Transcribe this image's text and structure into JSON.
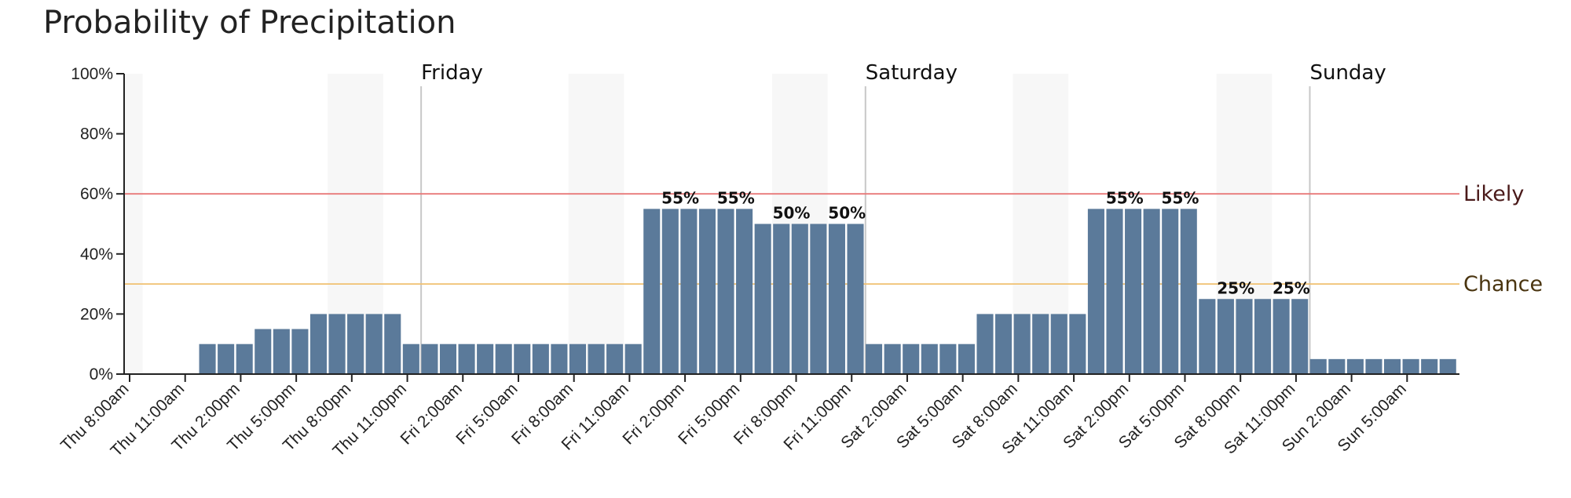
{
  "chart_data": {
    "type": "bar",
    "title": "Probability of Precipitation",
    "xlabel": "",
    "ylabel": "",
    "ylim": [
      0,
      100
    ],
    "yticks": [
      "0%",
      "20%",
      "40%",
      "60%",
      "80%",
      "100%"
    ],
    "ytick_values": [
      0,
      20,
      40,
      60,
      80,
      100
    ],
    "start_time": "Thu 8:00am",
    "interval_hours": 1,
    "xtick_labels": [
      "Thu 8:00am",
      "Thu 11:00am",
      "Thu 2:00pm",
      "Thu 5:00pm",
      "Thu 8:00pm",
      "Thu 11:00pm",
      "Fri 2:00am",
      "Fri 5:00am",
      "Fri 8:00am",
      "Fri 11:00am",
      "Fri 2:00pm",
      "Fri 5:00pm",
      "Fri 8:00pm",
      "Fri 11:00pm",
      "Sat 2:00am",
      "Sat 5:00am",
      "Sat 8:00am",
      "Sat 11:00am",
      "Sat 2:00pm",
      "Sat 5:00pm",
      "Sat 8:00pm",
      "Sat 11:00pm",
      "Sun 2:00am",
      "Sun 5:00am"
    ],
    "values": [
      0,
      0,
      0,
      0,
      10,
      10,
      10,
      15,
      15,
      15,
      20,
      20,
      20,
      20,
      20,
      10,
      10,
      10,
      10,
      10,
      10,
      10,
      10,
      10,
      10,
      10,
      10,
      10,
      55,
      55,
      55,
      55,
      55,
      55,
      50,
      50,
      50,
      50,
      50,
      50,
      10,
      10,
      10,
      10,
      10,
      10,
      20,
      20,
      20,
      20,
      20,
      20,
      55,
      55,
      55,
      55,
      55,
      55,
      25,
      25,
      25,
      25,
      25,
      25,
      5,
      5,
      5,
      5,
      5,
      5,
      5,
      5
    ],
    "bar_color": "#5b7a9a",
    "day_markers": [
      {
        "label": "Friday",
        "time": "Fri 12:00am"
      },
      {
        "label": "Saturday",
        "time": "Sat 12:00am"
      },
      {
        "label": "Sunday",
        "time": "Sun 12:00am"
      }
    ],
    "thresholds": [
      {
        "label": "Likely",
        "value": 60,
        "color": "#e87878",
        "label_color": "#4a1a1a"
      },
      {
        "label": "Chance",
        "value": 30,
        "color": "#f0c070",
        "label_color": "#4a3510"
      }
    ],
    "data_labels": [
      {
        "time": "Fri 2:00pm",
        "text": "55%"
      },
      {
        "time": "Fri 5:00pm",
        "text": "55%"
      },
      {
        "time": "Fri 8:00pm",
        "text": "50%"
      },
      {
        "time": "Fri 11:00pm",
        "text": "50%"
      },
      {
        "time": "Sat 2:00pm",
        "text": "55%"
      },
      {
        "time": "Sat 5:00pm",
        "text": "55%"
      },
      {
        "time": "Sat 8:00pm",
        "text": "25%"
      },
      {
        "time": "Sat 11:00pm",
        "text": "25%"
      }
    ],
    "night_bands": [
      {
        "from": "Thu 8:00am",
        "to": "Thu 9:00am"
      },
      {
        "from": "Thu 7:00pm",
        "to": "Thu 10:00pm"
      },
      {
        "from": "Fri 8:00am",
        "to": "Fri 11:00am"
      },
      {
        "from": "Fri 7:00pm",
        "to": "Fri 10:00pm"
      },
      {
        "from": "Sat 8:00am",
        "to": "Sat 11:00am"
      },
      {
        "from": "Sat 7:00pm",
        "to": "Sat 10:00pm"
      },
      {
        "from": "Sun 8:00am",
        "to": "Sun 10:00am"
      }
    ],
    "grid": false,
    "legend": "none"
  }
}
